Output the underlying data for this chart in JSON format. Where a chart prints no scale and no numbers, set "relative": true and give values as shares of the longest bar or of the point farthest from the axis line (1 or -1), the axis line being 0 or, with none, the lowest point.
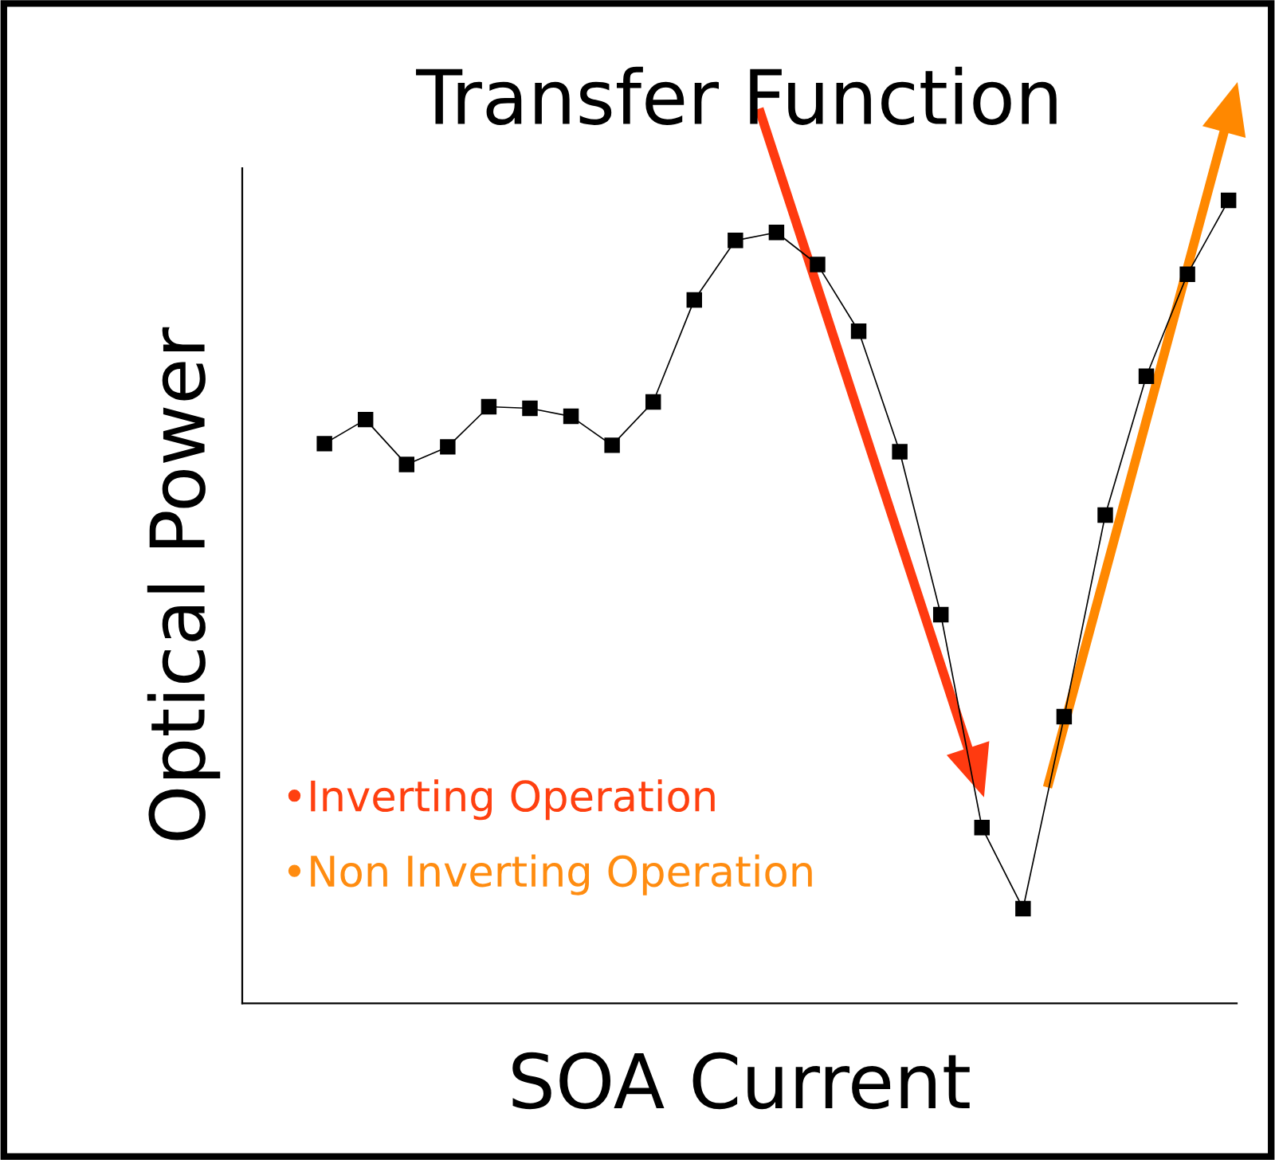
{
  "chart_data": {
    "type": "line",
    "title": "Transfer Function",
    "xlabel": "SOA Current",
    "ylabel": "Optical Power",
    "relative": true,
    "categories": [
      null,
      null,
      null,
      null,
      null,
      null,
      null,
      null,
      null,
      null,
      null,
      null,
      null,
      null,
      null,
      null,
      null,
      null,
      null,
      null,
      null,
      null,
      null
    ],
    "series": [
      {
        "color": "#000000",
        "values": [
          0.697,
          0.727,
          0.671,
          0.693,
          0.743,
          0.741,
          0.731,
          0.695,
          0.749,
          0.876,
          0.95,
          0.96,
          0.92,
          0.837,
          0.687,
          0.484,
          0.219,
          0.118,
          0.357,
          0.608,
          0.781,
          0.908,
          1.0
        ]
      }
    ],
    "marker": "square",
    "line_style": "solid",
    "annotations": [
      "•Inverting Operation",
      "•Non Inverting Operation"
    ]
  }
}
